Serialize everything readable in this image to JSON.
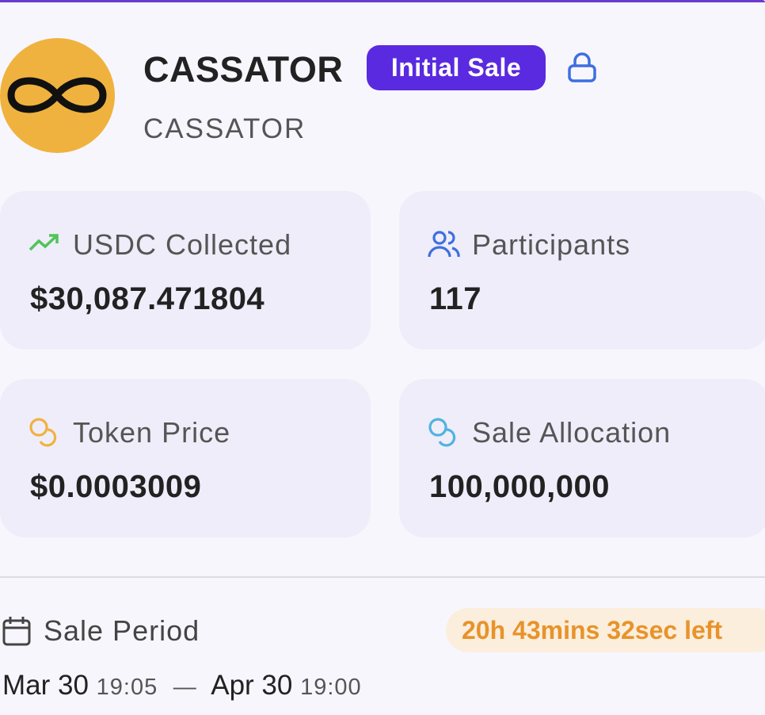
{
  "header": {
    "title": "CASSATOR",
    "badge": "Initial Sale",
    "subtitle": "CASSATOR"
  },
  "stats": [
    {
      "label": "USDC Collected",
      "value": "$30,087.471804"
    },
    {
      "label": "Participants",
      "value": "117"
    },
    {
      "label": "Token Price",
      "value": "$0.0003009"
    },
    {
      "label": "Sale Allocation",
      "value": "100,000,000"
    }
  ],
  "sale_period": {
    "label": "Sale Period",
    "time_left": "20h 43mins 32sec left",
    "start_date": "Mar 30",
    "start_time": "19:05",
    "separator": "—",
    "end_date": "Apr 30",
    "end_time": "19:00"
  }
}
